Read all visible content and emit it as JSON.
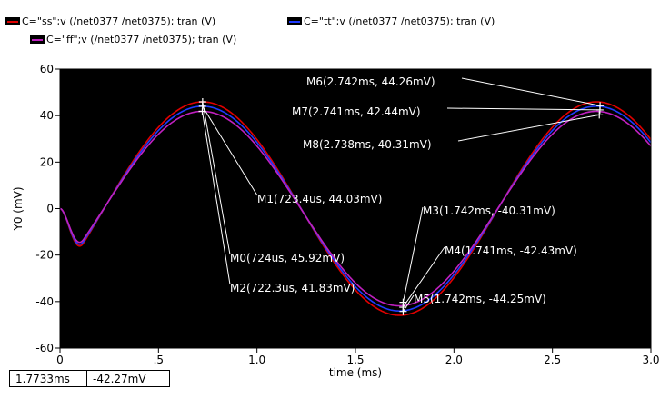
{
  "legend": [
    {
      "label": "C=\"ss\";v (/net0377 /net0375); tran (V)",
      "color": "#e00000"
    },
    {
      "label": "C=\"tt\";v (/net0377 /net0375); tran (V)",
      "color": "#1f3bff"
    },
    {
      "label": "C=\"ff\";v (/net0377 /net0375); tran (V)",
      "color": "#c020c0"
    }
  ],
  "readout": {
    "x": "1.7733ms",
    "y": "-42.27mV"
  },
  "chart_data": {
    "type": "line",
    "xlabel": "time (ms)",
    "ylabel": "Y0 (mV)",
    "xlim": [
      0,
      3.0
    ],
    "ylim": [
      -60,
      60
    ],
    "x_ticks": [
      0,
      0.5,
      1.0,
      1.5,
      2.0,
      2.5,
      3.0
    ],
    "x_tick_labels": [
      "0",
      ".5",
      "1.0",
      "1.5",
      "2.0",
      "2.5",
      "3.0"
    ],
    "y_ticks": [
      -60,
      -40,
      -20,
      0,
      20,
      40,
      60
    ],
    "y_tick_labels": [
      "-60",
      "-40",
      "-20",
      "0",
      "20",
      "40",
      "60"
    ],
    "background": "#000000",
    "series": [
      {
        "name": "C=\"ss\";v (/net0377 /net0375); tran (V)",
        "color": "#e00000",
        "amplitude": 45.92,
        "period_ms": 2.0,
        "peak_ms": 0.724
      },
      {
        "name": "C=\"tt\";v (/net0377 /net0375); tran (V)",
        "color": "#1f3bff",
        "amplitude": 44.03,
        "period_ms": 2.0,
        "peak_ms": 0.7234
      },
      {
        "name": "C=\"ff\";v (/net0377 /net0375); tran (V)",
        "color": "#c020c0",
        "amplitude": 41.83,
        "period_ms": 2.0,
        "peak_ms": 0.7223
      }
    ],
    "markers": [
      {
        "label": "M6(2.742ms, 44.26mV)",
        "x": 2.742,
        "y": 44.26,
        "series": 0
      },
      {
        "label": "M7(2.741ms, 42.44mV)",
        "x": 2.741,
        "y": 42.44,
        "series": 1
      },
      {
        "label": "M8(2.738ms, 40.31mV)",
        "x": 2.738,
        "y": 40.31,
        "series": 2
      },
      {
        "label": "M1(723.4us, 44.03mV)",
        "x": 0.7234,
        "y": 44.03,
        "series": 1
      },
      {
        "label": "M3(1.742ms, -40.31mV)",
        "x": 1.742,
        "y": -40.31,
        "series": 2
      },
      {
        "label": "M0(724us, 45.92mV)",
        "x": 0.724,
        "y": 45.92,
        "series": 0
      },
      {
        "label": "M4(1.741ms, -42.43mV)",
        "x": 1.741,
        "y": -42.43,
        "series": 1
      },
      {
        "label": "M2(722.3us, 41.83mV)",
        "x": 0.7223,
        "y": 41.83,
        "series": 2
      },
      {
        "label": "M5(1.742ms, -44.25mV)",
        "x": 1.742,
        "y": -44.25,
        "series": 0
      }
    ]
  }
}
